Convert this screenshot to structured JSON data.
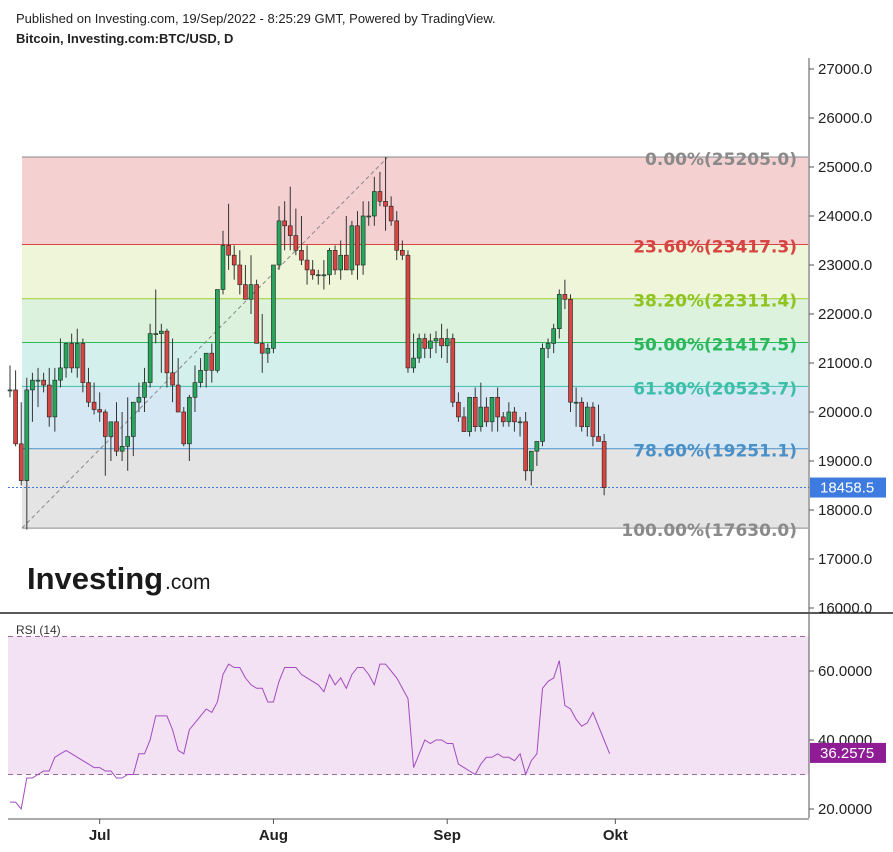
{
  "header": {
    "published": "Published on Investing.com, 19/Sep/2022 - 8:25:29 GMT, Powered by TradingView.",
    "symbol": "Bitcoin, Investing.com:BTC/USD, D"
  },
  "logo": {
    "main": "Investing",
    "suffix": ".com"
  },
  "colors": {
    "up": "#26a65b",
    "down": "#d64541",
    "rsi": "#a34bc0",
    "price_tag": "#3d7be0",
    "rsi_tag": "#8e1d95"
  },
  "chart_data": [
    {
      "type": "candlestick",
      "title": "Bitcoin, Investing.com:BTC/USD, D",
      "y_ticks": [
        "27000.0",
        "26000.0",
        "25000.0",
        "24000.0",
        "23000.0",
        "22000.0",
        "21000.0",
        "20000.0",
        "19000.0",
        "18000.0",
        "17000.0",
        "16000.0"
      ],
      "ylim": [
        16000,
        27000
      ],
      "x_labels": [
        {
          "label": "Jul",
          "index": 16
        },
        {
          "label": "Aug",
          "index": 47
        },
        {
          "label": "Sep",
          "index": 78
        },
        {
          "label": "Okt",
          "index": 108
        }
      ],
      "last_price": "18458.5",
      "fib_levels": [
        {
          "label": "0.00%(25205.0)",
          "pct": "0.00%",
          "value": 25205.0,
          "line": "#888888",
          "fill": "#f4d0d0",
          "text": "#8a8a8a"
        },
        {
          "label": "23.60%(23417.3)",
          "pct": "23.60%",
          "value": 23417.3,
          "line": "#d64541",
          "fill": "#eef5d8",
          "text": "#d64541"
        },
        {
          "label": "38.20%(22311.4)",
          "pct": "38.20%",
          "value": 22311.4,
          "line": "#9acd32",
          "fill": "#dcf2dc",
          "text": "#8fc31f"
        },
        {
          "label": "50.00%(21417.5)",
          "pct": "50.00%",
          "value": 21417.5,
          "line": "#2eb85c",
          "fill": "#d3f0ec",
          "text": "#2eb85c"
        },
        {
          "label": "61.80%(20523.7)",
          "pct": "61.80%",
          "value": 20523.7,
          "line": "#3cbfa8",
          "fill": "#d5e8f4",
          "text": "#3cbfa8"
        },
        {
          "label": "78.60%(19251.1)",
          "pct": "78.60%",
          "value": 19251.1,
          "line": "#4a90c8",
          "fill": "#e4e4e4",
          "text": "#4a90c8"
        },
        {
          "label": "100.00%(17630.0)",
          "pct": "100.00%",
          "value": 17630.0,
          "line": "#888888",
          "fill": null,
          "text": "#8a8a8a"
        }
      ],
      "candles": [
        {
          "o": 20450,
          "h": 20950,
          "l": 20300,
          "c": 20450
        },
        {
          "o": 20450,
          "h": 20850,
          "l": 19300,
          "c": 19350
        },
        {
          "o": 19350,
          "h": 20200,
          "l": 18500,
          "c": 18600
        },
        {
          "o": 18600,
          "h": 20700,
          "l": 17600,
          "c": 20450
        },
        {
          "o": 20450,
          "h": 20800,
          "l": 19800,
          "c": 20650
        },
        {
          "o": 20650,
          "h": 20900,
          "l": 20100,
          "c": 20650
        },
        {
          "o": 20650,
          "h": 20800,
          "l": 20400,
          "c": 20550
        },
        {
          "o": 20550,
          "h": 20900,
          "l": 19700,
          "c": 19900
        },
        {
          "o": 19900,
          "h": 20900,
          "l": 19600,
          "c": 20650
        },
        {
          "o": 20650,
          "h": 21500,
          "l": 20500,
          "c": 20900
        },
        {
          "o": 20900,
          "h": 21400,
          "l": 20700,
          "c": 21400
        },
        {
          "o": 21400,
          "h": 21600,
          "l": 20800,
          "c": 20900
        },
        {
          "o": 20900,
          "h": 21700,
          "l": 20700,
          "c": 21400
        },
        {
          "o": 21400,
          "h": 21500,
          "l": 20400,
          "c": 20600
        },
        {
          "o": 20600,
          "h": 20900,
          "l": 20100,
          "c": 20200
        },
        {
          "o": 20200,
          "h": 20600,
          "l": 19950,
          "c": 20050
        },
        {
          "o": 20050,
          "h": 20400,
          "l": 19800,
          "c": 20000
        },
        {
          "o": 20000,
          "h": 20050,
          "l": 18700,
          "c": 19500
        },
        {
          "o": 19500,
          "h": 19800,
          "l": 19000,
          "c": 19800
        },
        {
          "o": 19800,
          "h": 20200,
          "l": 19100,
          "c": 19200
        },
        {
          "o": 19200,
          "h": 20000,
          "l": 19000,
          "c": 19300
        },
        {
          "o": 19300,
          "h": 20300,
          "l": 18800,
          "c": 19500
        },
        {
          "o": 19500,
          "h": 20200,
          "l": 19100,
          "c": 20200
        },
        {
          "o": 20200,
          "h": 20600,
          "l": 20000,
          "c": 20300
        },
        {
          "o": 20300,
          "h": 20900,
          "l": 20000,
          "c": 20600
        },
        {
          "o": 20600,
          "h": 21800,
          "l": 20500,
          "c": 21600
        },
        {
          "o": 21600,
          "h": 22500,
          "l": 21400,
          "c": 21600
        },
        {
          "o": 21600,
          "h": 21800,
          "l": 20800,
          "c": 21650
        },
        {
          "o": 21650,
          "h": 21700,
          "l": 20500,
          "c": 20800
        },
        {
          "o": 20800,
          "h": 21500,
          "l": 20200,
          "c": 20550
        },
        {
          "o": 20550,
          "h": 21100,
          "l": 20100,
          "c": 20000
        },
        {
          "o": 20000,
          "h": 20100,
          "l": 19300,
          "c": 19350
        },
        {
          "o": 19350,
          "h": 20350,
          "l": 19000,
          "c": 20300
        },
        {
          "o": 20300,
          "h": 20950,
          "l": 20000,
          "c": 20600
        },
        {
          "o": 20600,
          "h": 21100,
          "l": 20500,
          "c": 20850
        },
        {
          "o": 20850,
          "h": 21200,
          "l": 20500,
          "c": 21200
        },
        {
          "o": 21200,
          "h": 21400,
          "l": 20600,
          "c": 20850
        },
        {
          "o": 20850,
          "h": 22500,
          "l": 20800,
          "c": 22500
        },
        {
          "o": 22500,
          "h": 23700,
          "l": 22400,
          "c": 23400
        },
        {
          "o": 23400,
          "h": 24250,
          "l": 22900,
          "c": 23200
        },
        {
          "o": 23200,
          "h": 23400,
          "l": 22700,
          "c": 23000
        },
        {
          "o": 23000,
          "h": 23300,
          "l": 22400,
          "c": 22600
        },
        {
          "o": 22600,
          "h": 23000,
          "l": 22300,
          "c": 22300
        },
        {
          "o": 22300,
          "h": 23200,
          "l": 22000,
          "c": 22600
        },
        {
          "o": 22600,
          "h": 22700,
          "l": 21400,
          "c": 21400
        },
        {
          "o": 21400,
          "h": 22000,
          "l": 20800,
          "c": 21200
        },
        {
          "o": 21200,
          "h": 21400,
          "l": 21000,
          "c": 21300
        },
        {
          "o": 21300,
          "h": 23000,
          "l": 21200,
          "c": 23000
        },
        {
          "o": 23000,
          "h": 24200,
          "l": 22900,
          "c": 23900
        },
        {
          "o": 23900,
          "h": 24300,
          "l": 23300,
          "c": 23800
        },
        {
          "o": 23800,
          "h": 24600,
          "l": 23300,
          "c": 23600
        },
        {
          "o": 23600,
          "h": 24150,
          "l": 23200,
          "c": 23300
        },
        {
          "o": 23300,
          "h": 24000,
          "l": 23000,
          "c": 23100
        },
        {
          "o": 23100,
          "h": 23400,
          "l": 22600,
          "c": 22900
        },
        {
          "o": 22900,
          "h": 23100,
          "l": 22700,
          "c": 22800
        },
        {
          "o": 22800,
          "h": 22900,
          "l": 22600,
          "c": 22800
        },
        {
          "o": 22800,
          "h": 23100,
          "l": 22500,
          "c": 22800
        },
        {
          "o": 22800,
          "h": 23350,
          "l": 22600,
          "c": 23300
        },
        {
          "o": 23300,
          "h": 23400,
          "l": 22800,
          "c": 22900
        },
        {
          "o": 22900,
          "h": 23500,
          "l": 22700,
          "c": 23200
        },
        {
          "o": 23200,
          "h": 24000,
          "l": 22900,
          "c": 22900
        },
        {
          "o": 22900,
          "h": 23900,
          "l": 22800,
          "c": 23800
        },
        {
          "o": 23800,
          "h": 24100,
          "l": 22700,
          "c": 23000
        },
        {
          "o": 23000,
          "h": 24300,
          "l": 22800,
          "c": 24000
        },
        {
          "o": 24000,
          "h": 24300,
          "l": 23800,
          "c": 24000
        },
        {
          "o": 24000,
          "h": 24800,
          "l": 23800,
          "c": 24500
        },
        {
          "o": 24500,
          "h": 24900,
          "l": 24200,
          "c": 24300
        },
        {
          "o": 24300,
          "h": 25200,
          "l": 23700,
          "c": 24200
        },
        {
          "o": 24200,
          "h": 24400,
          "l": 23800,
          "c": 23900
        },
        {
          "o": 23900,
          "h": 24100,
          "l": 23100,
          "c": 23300
        },
        {
          "o": 23300,
          "h": 23500,
          "l": 23100,
          "c": 23200
        },
        {
          "o": 23200,
          "h": 23300,
          "l": 20800,
          "c": 20900
        },
        {
          "o": 20900,
          "h": 21600,
          "l": 20800,
          "c": 21100
        },
        {
          "o": 21100,
          "h": 21600,
          "l": 21000,
          "c": 21500
        },
        {
          "o": 21500,
          "h": 21600,
          "l": 21100,
          "c": 21300
        },
        {
          "o": 21300,
          "h": 21600,
          "l": 21100,
          "c": 21450
        },
        {
          "o": 21450,
          "h": 21650,
          "l": 21200,
          "c": 21500
        },
        {
          "o": 21500,
          "h": 21800,
          "l": 21100,
          "c": 21350
        },
        {
          "o": 21350,
          "h": 21700,
          "l": 21000,
          "c": 21500
        },
        {
          "o": 21500,
          "h": 21600,
          "l": 20100,
          "c": 20200
        },
        {
          "o": 20200,
          "h": 20400,
          "l": 19800,
          "c": 19900
        },
        {
          "o": 19900,
          "h": 20100,
          "l": 19600,
          "c": 19600
        },
        {
          "o": 19600,
          "h": 20300,
          "l": 19500,
          "c": 20300
        },
        {
          "o": 20300,
          "h": 20500,
          "l": 19600,
          "c": 19700
        },
        {
          "o": 19700,
          "h": 20600,
          "l": 19600,
          "c": 20100
        },
        {
          "o": 20100,
          "h": 20300,
          "l": 19700,
          "c": 19800
        },
        {
          "o": 19800,
          "h": 20200,
          "l": 19600,
          "c": 20300
        },
        {
          "o": 20300,
          "h": 20500,
          "l": 19600,
          "c": 19900
        },
        {
          "o": 19900,
          "h": 20000,
          "l": 19700,
          "c": 19800
        },
        {
          "o": 19800,
          "h": 20200,
          "l": 19700,
          "c": 20000
        },
        {
          "o": 20000,
          "h": 20100,
          "l": 19600,
          "c": 19800
        },
        {
          "o": 19800,
          "h": 19900,
          "l": 19500,
          "c": 19800
        },
        {
          "o": 19800,
          "h": 20000,
          "l": 18600,
          "c": 18800
        },
        {
          "o": 18800,
          "h": 19200,
          "l": 18500,
          "c": 19200
        },
        {
          "o": 19200,
          "h": 19400,
          "l": 18900,
          "c": 19400
        },
        {
          "o": 19400,
          "h": 21400,
          "l": 19300,
          "c": 21300
        },
        {
          "o": 21300,
          "h": 21500,
          "l": 21100,
          "c": 21400
        },
        {
          "o": 21400,
          "h": 21800,
          "l": 21200,
          "c": 21700
        },
        {
          "o": 21700,
          "h": 22500,
          "l": 21500,
          "c": 22400
        },
        {
          "o": 22400,
          "h": 22700,
          "l": 22100,
          "c": 22300
        },
        {
          "o": 22300,
          "h": 22400,
          "l": 20000,
          "c": 20200
        },
        {
          "o": 20200,
          "h": 20500,
          "l": 19700,
          "c": 20200
        },
        {
          "o": 20200,
          "h": 20300,
          "l": 19600,
          "c": 19700
        },
        {
          "o": 19700,
          "h": 20200,
          "l": 19500,
          "c": 20100
        },
        {
          "o": 20100,
          "h": 20200,
          "l": 19300,
          "c": 19500
        },
        {
          "o": 19500,
          "h": 20150,
          "l": 19400,
          "c": 19400
        },
        {
          "o": 19400,
          "h": 19550,
          "l": 18300,
          "c": 18458
        }
      ]
    },
    {
      "type": "line",
      "title": "RSI (14)",
      "y_ticks": [
        "60.0000",
        "40.0000",
        "20.0000"
      ],
      "ylim": [
        17,
        72
      ],
      "bands": [
        70,
        30
      ],
      "last_value": "36.2575",
      "values": [
        22,
        22,
        20,
        29,
        29,
        30,
        31,
        31,
        35,
        36,
        37,
        36,
        35,
        34,
        33,
        32,
        32,
        31,
        31,
        29,
        29,
        30,
        30,
        36,
        36,
        40,
        47,
        47,
        47,
        43,
        37,
        36,
        43,
        45,
        47,
        49,
        48,
        51,
        59,
        62,
        61,
        61,
        58,
        56,
        55,
        55,
        51,
        51,
        57,
        61,
        61,
        61,
        59,
        58,
        57,
        56,
        54,
        59,
        56,
        58,
        55,
        59,
        61,
        61,
        59,
        56,
        62,
        62,
        60,
        58,
        55,
        52,
        32,
        36,
        40,
        39,
        40,
        40,
        39,
        39,
        33,
        32,
        31,
        30,
        33,
        35,
        35,
        36,
        35,
        35,
        34,
        36,
        30,
        34,
        36,
        55,
        57,
        58,
        63,
        50,
        49,
        46,
        44,
        45,
        48,
        44,
        40,
        36
      ]
    }
  ]
}
